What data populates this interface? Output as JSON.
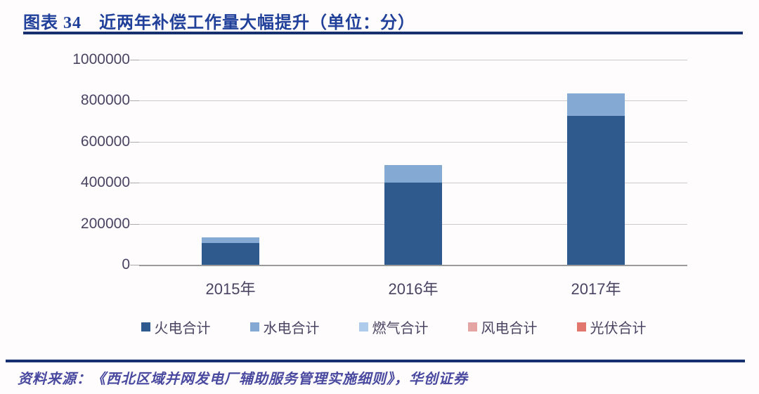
{
  "header": {
    "title": "图表 34　近两年补偿工作量大幅提升（单位：分）"
  },
  "chart_data": {
    "type": "bar",
    "stacked": true,
    "title": "近两年补偿工作量大幅提升",
    "unit": "分",
    "categories": [
      "2015年",
      "2016年",
      "2017年"
    ],
    "series": [
      {
        "name": "火电合计",
        "color": "#2f5a8e",
        "values": [
          105000,
          400000,
          725000
        ]
      },
      {
        "name": "水电合计",
        "color": "#84aad4",
        "values": [
          30000,
          86000,
          110000
        ]
      },
      {
        "name": "燃气合计",
        "color": "#aecbeb",
        "values": [
          0,
          0,
          0
        ]
      },
      {
        "name": "风电合计",
        "color": "#e5a4a4",
        "values": [
          0,
          0,
          0
        ]
      },
      {
        "name": "光伏合计",
        "color": "#e0766d",
        "values": [
          0,
          0,
          0
        ]
      }
    ],
    "ylim": [
      0,
      1000000
    ],
    "yticks": [
      0,
      200000,
      400000,
      600000,
      800000,
      1000000
    ],
    "xlabel": "",
    "ylabel": "",
    "grid": true,
    "legend_position": "bottom",
    "colors": {
      "gridline": "#cbcbcb",
      "axis_line": "#9a9a9a",
      "tick_text": "#4a4462",
      "title_text": "#20409a",
      "rule": "#17306f",
      "source_text": "#4949a0"
    }
  },
  "footer": {
    "source": "资料来源：《西北区域并网发电厂辅助服务管理实施细则》，华创证券"
  }
}
